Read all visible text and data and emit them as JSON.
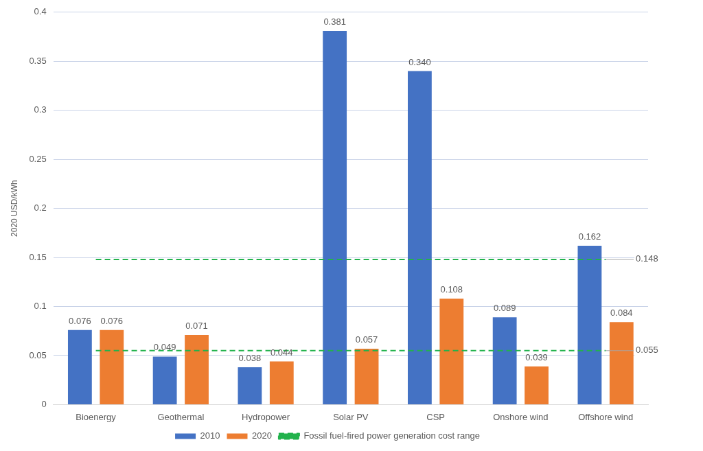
{
  "chart_data": {
    "type": "bar",
    "ylabel": "2020 USD/kWh",
    "categories": [
      "Bioenergy",
      "Geothermal",
      "Hydropower",
      "Solar PV",
      "CSP",
      "Onshore wind",
      "Offshore wind"
    ],
    "series": [
      {
        "name": "2010",
        "color": "#4472c4",
        "values": [
          0.076,
          0.049,
          0.038,
          0.381,
          0.34,
          0.089,
          0.162
        ],
        "value_labels": [
          "0.076",
          "0.049",
          "0.038",
          "0.381",
          "0.340",
          "0.089",
          "0.162"
        ]
      },
      {
        "name": "2020",
        "color": "#ed7d31",
        "values": [
          0.076,
          0.071,
          0.044,
          0.057,
          0.108,
          0.039,
          0.084
        ],
        "value_labels": [
          "0.076",
          "0.071",
          "0.044",
          "0.057",
          "0.108",
          "0.039",
          "0.084"
        ]
      },
      {
        "name": "Fossil fuel-fired power generation cost range",
        "type": "line",
        "color": "#22b24c",
        "line_style": "dashed",
        "marker": "none",
        "values": [
          0.148,
          0.148,
          0.148,
          0.148,
          0.148,
          0.148,
          0.148
        ],
        "value_labels": [
          null,
          null,
          null,
          null,
          null,
          null,
          "0.148"
        ]
      },
      {
        "type": "line",
        "color": "#22b24c",
        "line_style": "dashed",
        "marker": "none",
        "values": [
          0.055,
          0.055,
          0.055,
          0.055,
          0.055,
          0.055,
          0.055
        ],
        "value_labels": [
          null,
          null,
          null,
          null,
          null,
          null,
          "0.055"
        ]
      }
    ],
    "ylim": [
      0,
      0.4
    ],
    "yticks": [
      0,
      0.05,
      0.1,
      0.15,
      0.2,
      0.25,
      0.3,
      0.35,
      0.4
    ],
    "grid": "y",
    "legend": "bottom"
  }
}
